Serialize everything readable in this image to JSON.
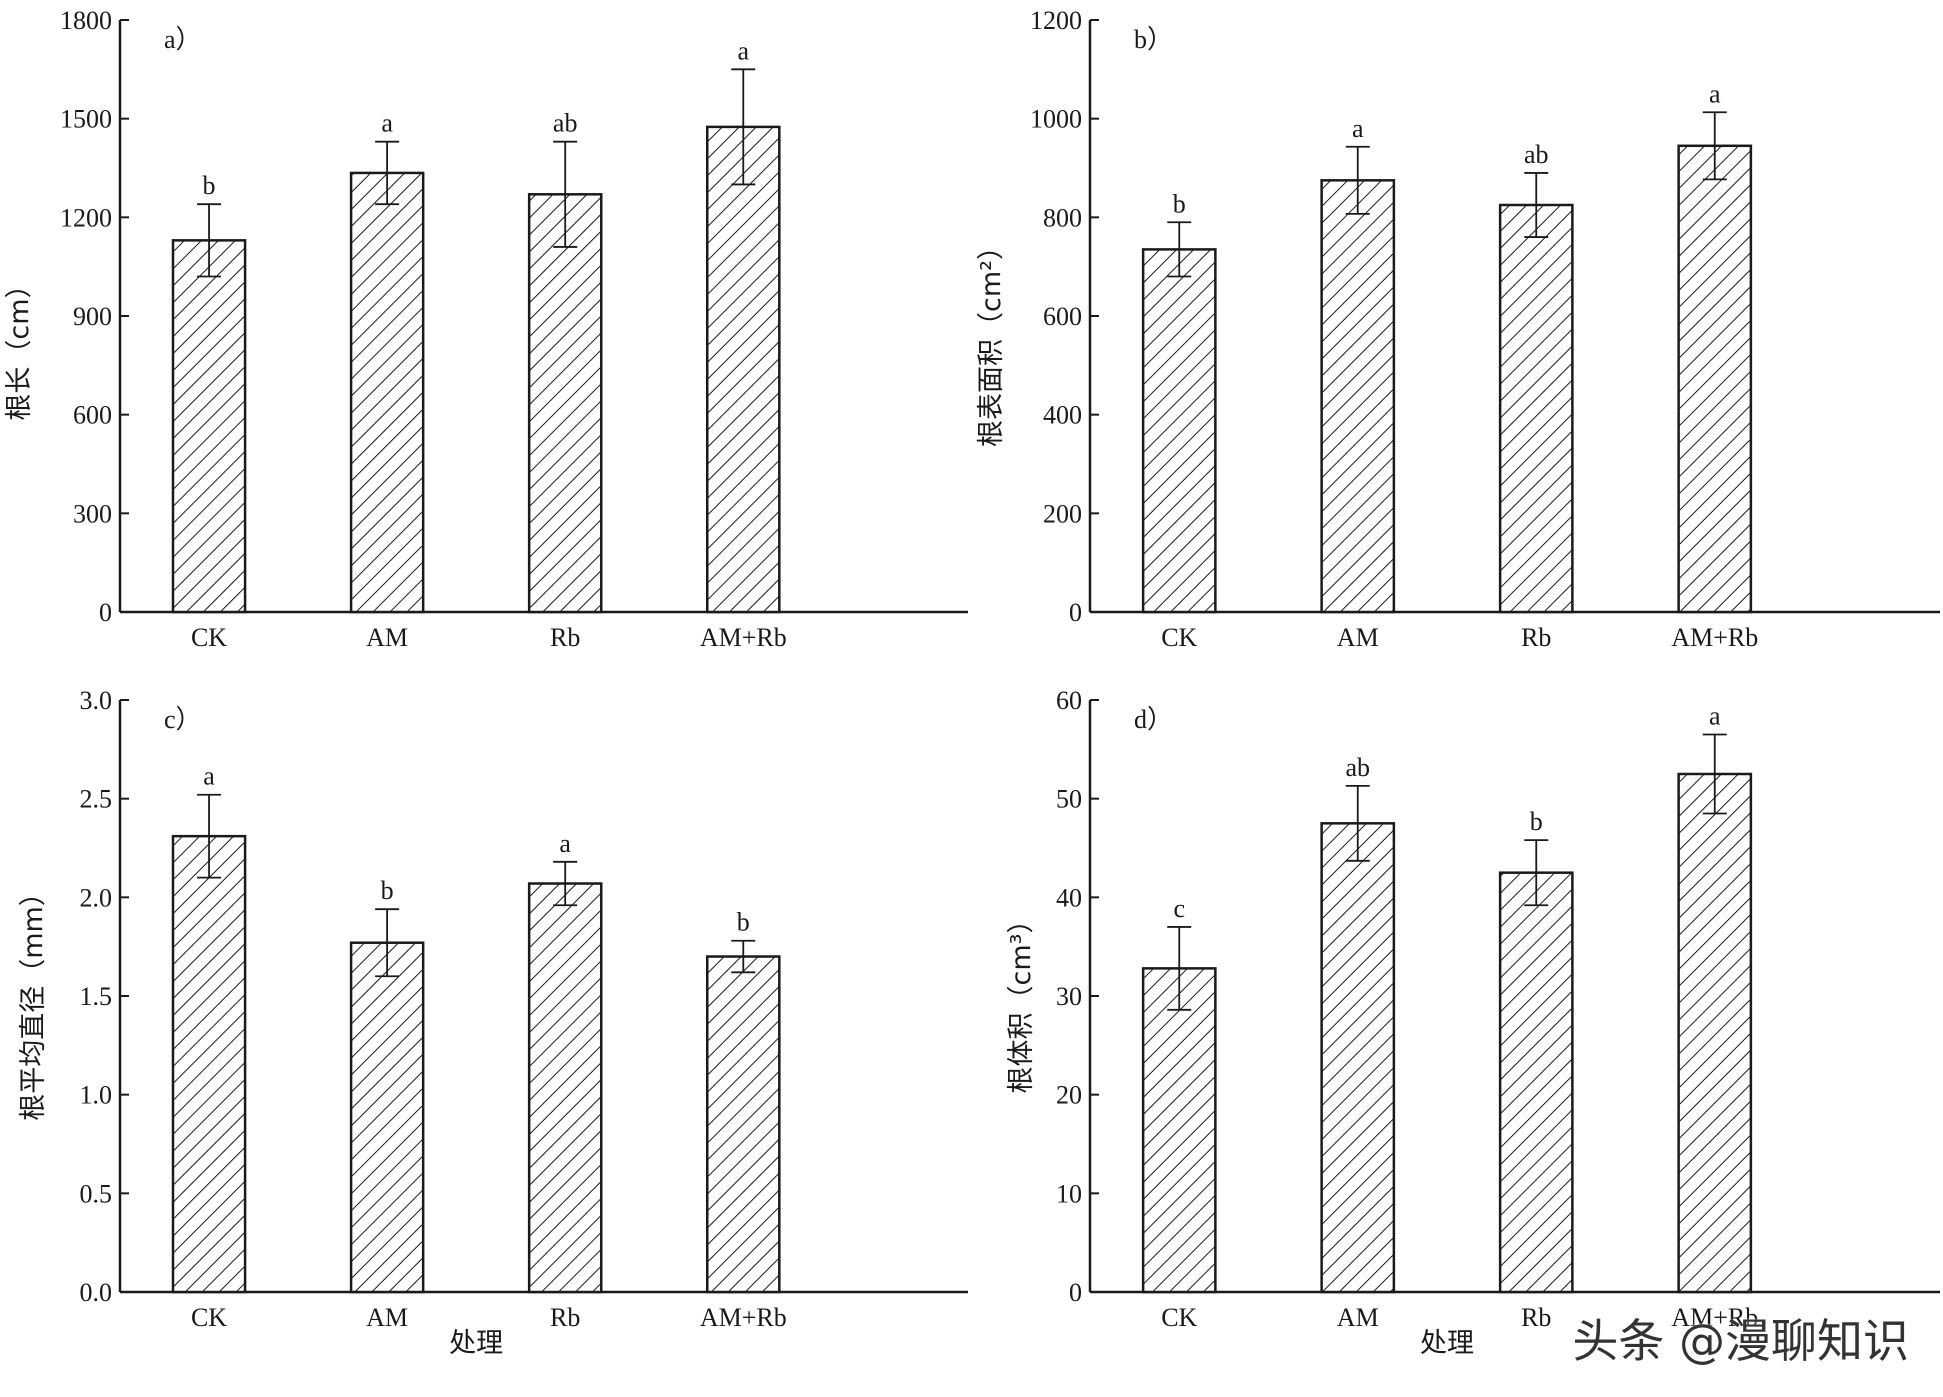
{
  "colors": {
    "ink": "#1a1a1a",
    "bar_fill": "#ffffff",
    "hatch": "#1a1a1a"
  },
  "watermark": "头条 @漫聊知识",
  "chart_data": [
    {
      "type": "bar",
      "panel_label": "a）",
      "categories": [
        "CK",
        "AM",
        "Rb",
        "AM+Rb"
      ],
      "values": [
        1130,
        1335,
        1270,
        1475
      ],
      "errors": [
        110,
        95,
        160,
        175
      ],
      "letters": [
        "b",
        "a",
        "ab",
        "a"
      ],
      "ylabel": "根长（cm）",
      "xlabel": "",
      "ylim": [
        0,
        1800
      ],
      "yticks": [
        0,
        300,
        600,
        900,
        1200,
        1500,
        1800
      ],
      "ytick_labels": [
        "0",
        "300",
        "600",
        "900",
        "1200",
        "1500",
        "1800"
      ]
    },
    {
      "type": "bar",
      "panel_label": "b）",
      "categories": [
        "CK",
        "AM",
        "Rb",
        "AM+Rb"
      ],
      "values": [
        735,
        875,
        825,
        945
      ],
      "errors": [
        55,
        68,
        65,
        68
      ],
      "letters": [
        "b",
        "a",
        "ab",
        "a"
      ],
      "ylabel": "根表面积（cm²）",
      "xlabel": "",
      "ylim": [
        0,
        1200
      ],
      "yticks": [
        0,
        200,
        400,
        600,
        800,
        1000,
        1200
      ],
      "ytick_labels": [
        "0",
        "200",
        "400",
        "600",
        "800",
        "1000",
        "1200"
      ]
    },
    {
      "type": "bar",
      "panel_label": "c）",
      "categories": [
        "CK",
        "AM",
        "Rb",
        "AM+Rb"
      ],
      "values": [
        2.31,
        1.77,
        2.07,
        1.7
      ],
      "errors": [
        0.21,
        0.17,
        0.11,
        0.08
      ],
      "letters": [
        "a",
        "b",
        "a",
        "b"
      ],
      "ylabel": "根平均直径（mm）",
      "xlabel": "处理",
      "ylim": [
        0,
        3.0
      ],
      "yticks": [
        0,
        0.5,
        1.0,
        1.5,
        2.0,
        2.5,
        3.0
      ],
      "ytick_labels": [
        "0.0",
        "0.5",
        "1.0",
        "1.5",
        "2.0",
        "2.5",
        "3.0"
      ]
    },
    {
      "type": "bar",
      "panel_label": "d）",
      "categories": [
        "CK",
        "AM",
        "Rb",
        "AM+Rb"
      ],
      "values": [
        32.8,
        47.5,
        42.5,
        52.5
      ],
      "errors": [
        4.2,
        3.8,
        3.3,
        4.0
      ],
      "letters": [
        "c",
        "ab",
        "b",
        "a"
      ],
      "ylabel": "根体积（cm³）",
      "xlabel": "处理",
      "ylim": [
        0,
        60
      ],
      "yticks": [
        0,
        10,
        20,
        30,
        40,
        50,
        60
      ],
      "ytick_labels": [
        "0",
        "10",
        "20",
        "30",
        "40",
        "50",
        "60"
      ]
    }
  ]
}
